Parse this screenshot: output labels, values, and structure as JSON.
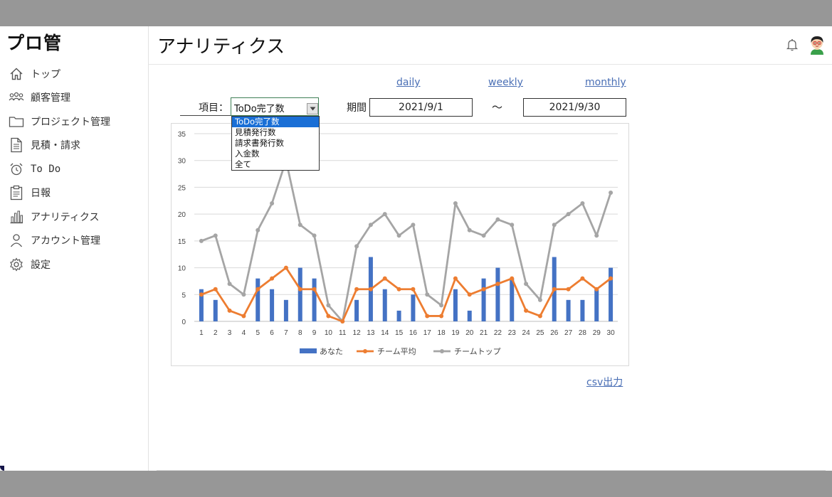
{
  "app": {
    "logo": "プロ管"
  },
  "sidebar": {
    "items": [
      {
        "label": "トップ",
        "icon": "home-icon"
      },
      {
        "label": "顧客管理",
        "icon": "users-icon"
      },
      {
        "label": "プロジェクト管理",
        "icon": "folder-icon"
      },
      {
        "label": "見積・請求",
        "icon": "document-icon"
      },
      {
        "label": "To Do",
        "icon": "alarm-clock-icon"
      },
      {
        "label": "日報",
        "icon": "clipboard-icon"
      },
      {
        "label": "アナリティクス",
        "icon": "bar-chart-icon"
      },
      {
        "label": "アカウント管理",
        "icon": "user-icon"
      },
      {
        "label": "設定",
        "icon": "gear-icon"
      }
    ]
  },
  "header": {
    "title": "アナリティクス"
  },
  "period_links": {
    "daily": "daily",
    "weekly": "weekly",
    "monthly": "monthly"
  },
  "filters": {
    "item_label": "項目：",
    "selected": "ToDo完了数",
    "options": [
      "ToDo完了数",
      "見積発行数",
      "請求書発行数",
      "入金数",
      "全て"
    ],
    "period_label": "期間",
    "start_date": "2021/9/1",
    "tilde": "～",
    "end_date": "2021/9/30"
  },
  "csv_label": "csv出力",
  "colors": {
    "you": "#4472c4",
    "team_avg": "#ed7d31",
    "team_top": "#a5a5a5",
    "link": "#4a6fb5"
  },
  "chart_data": {
    "type": "bar",
    "x": [
      1,
      2,
      3,
      4,
      5,
      6,
      7,
      8,
      9,
      10,
      11,
      12,
      13,
      14,
      15,
      16,
      17,
      18,
      19,
      20,
      21,
      22,
      23,
      24,
      25,
      26,
      27,
      28,
      29,
      30
    ],
    "ylim": [
      0,
      35
    ],
    "yticks": [
      0,
      5,
      10,
      15,
      20,
      25,
      30,
      35
    ],
    "grid": true,
    "legend": "bottom",
    "series": [
      {
        "name": "あなた",
        "type": "bar",
        "color": "#4472c4",
        "values": [
          6,
          4,
          0,
          0,
          8,
          6,
          4,
          10,
          8,
          0,
          0,
          4,
          12,
          6,
          2,
          5,
          0,
          0,
          6,
          2,
          8,
          10,
          8,
          0,
          0,
          12,
          4,
          4,
          6,
          10
        ]
      },
      {
        "name": "チーム平均",
        "type": "line",
        "color": "#ed7d31",
        "values": [
          5,
          6,
          2,
          1,
          6,
          8,
          10,
          6,
          6,
          1,
          0,
          6,
          6,
          8,
          6,
          6,
          1,
          1,
          8,
          5,
          6,
          7,
          8,
          2,
          1,
          6,
          6,
          8,
          6,
          8
        ]
      },
      {
        "name": "チームトップ",
        "type": "line",
        "color": "#a5a5a5",
        "values": [
          15,
          16,
          7,
          5,
          17,
          22,
          30,
          18,
          16,
          3,
          0,
          14,
          18,
          20,
          16,
          18,
          5,
          3,
          22,
          17,
          16,
          19,
          18,
          7,
          4,
          18,
          20,
          22,
          16,
          24
        ]
      }
    ]
  }
}
